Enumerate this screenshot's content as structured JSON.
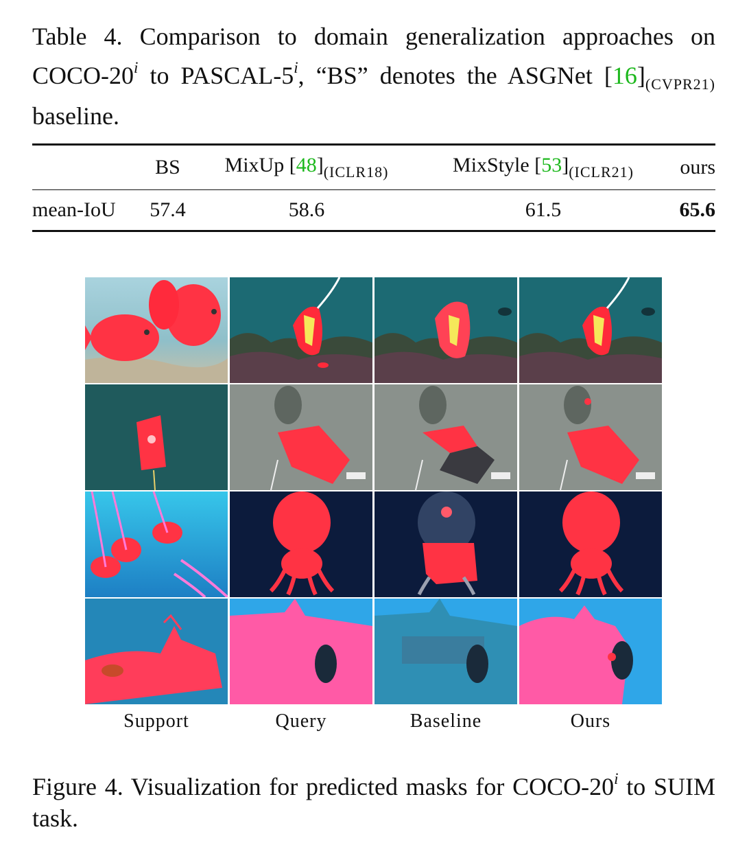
{
  "table_caption": {
    "prefix": "Table 4.  Comparison to domain generalization approaches on COCO-20",
    "sup1": "i",
    "mid1": " to PASCAL-5",
    "sup2": "i",
    "mid2": ", “BS” denotes the ASGNet [",
    "cite": "16",
    "close": "]",
    "sub": "(CVPR21)",
    "suffix": " baseline."
  },
  "table": {
    "columns": [
      {
        "label": ""
      },
      {
        "label": "BS"
      },
      {
        "label": "MixUp [",
        "cite": "48",
        "close": "]",
        "sub": "(ICLR18)"
      },
      {
        "label": "MixStyle [",
        "cite": "53",
        "close": "]",
        "sub": "(ICLR21)"
      },
      {
        "label": "ours"
      }
    ],
    "row": {
      "metric": "mean-IoU",
      "values": [
        "57.4",
        "58.6",
        "61.5",
        "65.6"
      ]
    }
  },
  "figure": {
    "column_labels": [
      "Support",
      "Query",
      "Baseline",
      "Ours"
    ],
    "rows": [
      "fish",
      "rov",
      "jellyfish",
      "wreck"
    ],
    "mask_color": "#ff2d45"
  },
  "figure_caption": {
    "prefix": "Figure 4.  Visualization for predicted masks for COCO-20",
    "sup": "i",
    "suffix": " to SUIM task."
  }
}
